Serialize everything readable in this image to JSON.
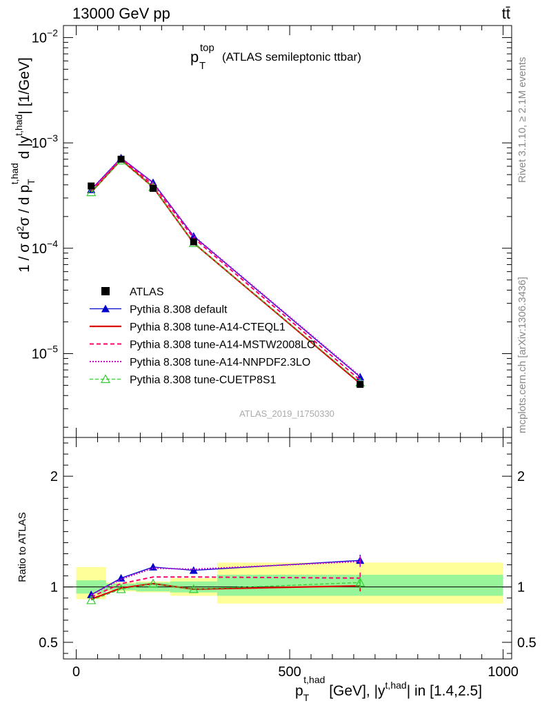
{
  "header": {
    "left": "13000 GeV pp",
    "right": "tt̄"
  },
  "side_labels": {
    "rivet": "Rivet 3.1.10, ≥ 2.1M events",
    "mcplots": "mcplots.cern.ch [arXiv:1306.3436]"
  },
  "plot_title": {
    "main": "p",
    "sup": "top",
    "sub": "T",
    "rest": "(ATLAS semileptonic ttbar)"
  },
  "watermark": "ATLAS_2019_I1750330",
  "ylabel_main": "1 / σ d²σ / d p_T^{t,had} d |y^{t,had}| [1/GeV]",
  "ylabel_ratio": "Ratio to ATLAS",
  "xlabel": "p_T^{t,had} [GeV], |y^{t,had}| in [1.4,2.5]",
  "colors": {
    "atlas": "#000000",
    "default": "#0000cc",
    "cteql1": "#dd0000",
    "mstw": "#ff0066",
    "nnpdf": "#cc00cc",
    "cuetp8s1": "#33cc33",
    "band_inner": "#99f599",
    "band_outer": "#ffff99"
  },
  "chart_data": [
    {
      "type": "line",
      "panel": "main",
      "xlim": [
        -30,
        1020
      ],
      "ylim": [
        1.6e-06,
        0.013
      ],
      "yscale": "log",
      "y_ticks": [
        {
          "value": 1e-05,
          "base": "10",
          "exp": "−5"
        },
        {
          "value": 0.0001,
          "base": "10",
          "exp": "−4"
        },
        {
          "value": 0.001,
          "base": "10",
          "exp": "−3"
        },
        {
          "value": 0.01,
          "base": "10",
          "exp": "−2"
        }
      ],
      "x": [
        35,
        105,
        180,
        275,
        665
      ],
      "series": [
        {
          "name": "ATLAS",
          "key": "atlas",
          "values": [
            0.00039,
            0.0007,
            0.00037,
            0.000115,
            5.1e-06
          ]
        },
        {
          "name": "Pythia 8.308 default",
          "key": "default",
          "values": [
            0.00036,
            0.00072,
            0.00042,
            0.00013,
            6e-06
          ]
        },
        {
          "name": "Pythia 8.308 tune-A14-CTEQL1",
          "key": "cteql1",
          "values": [
            0.00034,
            0.00069,
            0.00038,
            0.000112,
            5.2e-06
          ]
        },
        {
          "name": "Pythia 8.308 tune-A14-MSTW2008LO",
          "key": "mstw",
          "values": [
            0.00035,
            0.00071,
            0.0004,
            0.000125,
            5.6e-06
          ]
        },
        {
          "name": "Pythia 8.308 tune-A14-NNPDF2.3LO",
          "key": "nnpdf",
          "values": [
            0.00036,
            0.00072,
            0.00042,
            0.000131,
            6.1e-06
          ]
        },
        {
          "name": "Pythia 8.308 tune-CUETP8S1",
          "key": "cuetp8s1",
          "values": [
            0.00034,
            0.00068,
            0.00038,
            0.000112,
            5.3e-06
          ]
        }
      ],
      "legend": "left"
    },
    {
      "type": "line",
      "panel": "ratio",
      "xlim": [
        -30,
        1020
      ],
      "ylim": [
        0.35,
        2.35
      ],
      "x_ticks": [
        "0",
        "500",
        "1000"
      ],
      "x_tick_values": [
        0,
        500,
        1000
      ],
      "y_ticks": [
        "0.5",
        "1",
        "2"
      ],
      "y_tick_values": [
        0.5,
        1,
        2
      ],
      "x": [
        35,
        105,
        180,
        275,
        665
      ],
      "bins": [
        [
          0,
          70
        ],
        [
          70,
          140
        ],
        [
          140,
          220
        ],
        [
          220,
          330
        ],
        [
          330,
          1000
        ]
      ],
      "band_inner": [
        [
          0.94,
          1.06
        ],
        [
          0.97,
          1.03
        ],
        [
          0.96,
          1.04
        ],
        [
          0.95,
          1.05
        ],
        [
          0.92,
          1.11
        ]
      ],
      "band_outer": [
        [
          0.89,
          1.18
        ],
        [
          0.96,
          1.04
        ],
        [
          0.95,
          1.05
        ],
        [
          0.92,
          1.08
        ],
        [
          0.85,
          1.22
        ]
      ],
      "series": [
        {
          "name": "Pythia 8.308 default",
          "key": "default",
          "values": [
            0.93,
            1.08,
            1.18,
            1.15,
            1.24
          ]
        },
        {
          "name": "Pythia 8.308 tune-A14-CTEQL1",
          "key": "cteql1",
          "values": [
            0.89,
            0.99,
            1.03,
            0.98,
            1.01
          ]
        },
        {
          "name": "Pythia 8.308 tune-A14-MSTW2008LO",
          "key": "mstw",
          "values": [
            0.91,
            1.03,
            1.09,
            1.09,
            1.08
          ]
        },
        {
          "name": "Pythia 8.308 tune-A14-NNPDF2.3LO",
          "key": "nnpdf",
          "values": [
            0.93,
            1.07,
            1.17,
            1.16,
            1.23
          ]
        },
        {
          "name": "Pythia 8.308 tune-CUETP8S1",
          "key": "cuetp8s1",
          "values": [
            0.88,
            0.98,
            1.03,
            0.98,
            1.04
          ]
        }
      ]
    }
  ]
}
